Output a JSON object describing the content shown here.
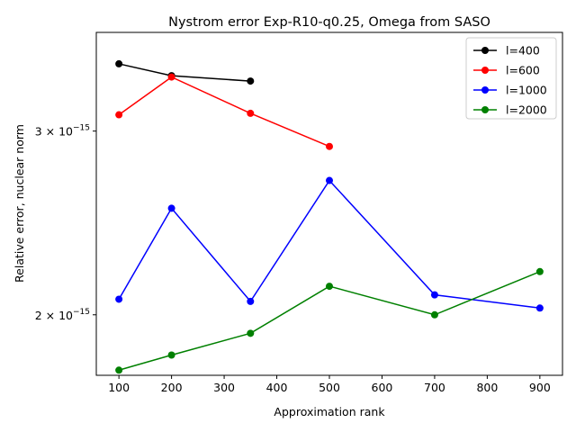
{
  "chart_data": {
    "type": "line",
    "title": "Nystrom error Exp-R10-q0.25, Omega from SASO",
    "xlabel": "Approximation rank",
    "ylabel": "Relative error, nuclear norm",
    "xlim": [
      57,
      943
    ],
    "ylim": [
      1.75e-15,
      3.73e-15
    ],
    "yscale": "log",
    "grid": false,
    "legend_position": "top-right",
    "x_ticks": [
      {
        "value": 100,
        "label": "100"
      },
      {
        "value": 200,
        "label": "200"
      },
      {
        "value": 300,
        "label": "300"
      },
      {
        "value": 400,
        "label": "400"
      },
      {
        "value": 500,
        "label": "500"
      },
      {
        "value": 600,
        "label": "600"
      },
      {
        "value": 700,
        "label": "700"
      },
      {
        "value": 800,
        "label": "800"
      },
      {
        "value": 900,
        "label": "900"
      }
    ],
    "y_ticks": [
      {
        "value": 3e-15,
        "label_base": "3 × 10",
        "label_exp": "−15"
      },
      {
        "value": 2e-15,
        "label_base": "2 × 10",
        "label_exp": "−15"
      }
    ],
    "series": [
      {
        "name": "l=400",
        "color": "#000000",
        "x": [
          100,
          200,
          350
        ],
        "y": [
          3.48e-15,
          3.39e-15,
          3.35e-15
        ]
      },
      {
        "name": "l=600",
        "color": "#ff0000",
        "x": [
          100,
          200,
          350,
          500
        ],
        "y": [
          3.11e-15,
          3.38e-15,
          3.12e-15,
          2.9e-15
        ]
      },
      {
        "name": "l=1000",
        "color": "#0000ff",
        "x": [
          100,
          200,
          350,
          500,
          700,
          900
        ],
        "y": [
          2.07e-15,
          2.53e-15,
          2.06e-15,
          2.69e-15,
          2.09e-15,
          2.03e-15
        ]
      },
      {
        "name": "l=2000",
        "color": "#008000",
        "x": [
          100,
          200,
          350,
          500,
          700,
          900
        ],
        "y": [
          1.77e-15,
          1.83e-15,
          1.92e-15,
          2.13e-15,
          2e-15,
          2.2e-15
        ]
      }
    ]
  }
}
